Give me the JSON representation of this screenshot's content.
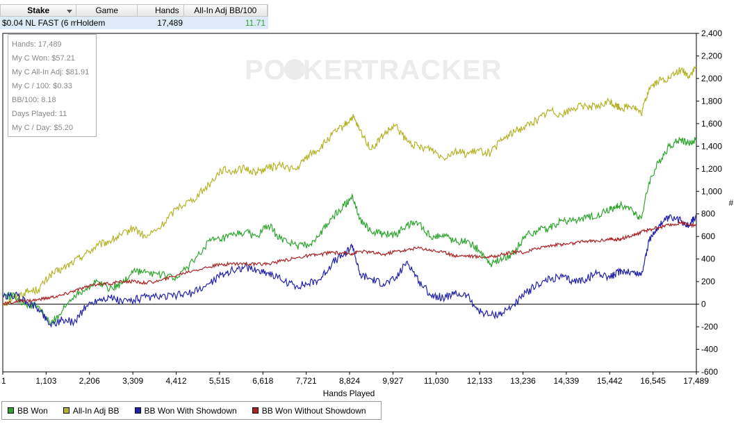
{
  "table": {
    "headers": {
      "stake": "Stake",
      "game": "Game",
      "hands": "Hands",
      "adj": "All-In Adj BB/100"
    },
    "row": {
      "stake": "$0.04 NL FAST (6 ma",
      "game": "Holdem",
      "hands": "17,489",
      "adj": "11.71"
    }
  },
  "stats_box": [
    "Hands: 17,489",
    "My C Won: $57.21",
    "My C All-In Adj: $81.91",
    "My C / 100: $0.33",
    "BB/100: 8.18",
    "Days Played: 11",
    "My C / Day: $5.20"
  ],
  "watermark": {
    "left": "PO",
    "mid": "KER",
    "right": "TRACKER"
  },
  "chart_data": {
    "type": "line",
    "title": "",
    "xlabel": "Hands Played",
    "ylabel": "#",
    "xlim": [
      1,
      17489
    ],
    "ylim": [
      -600,
      2400
    ],
    "x_ticks": [
      "1",
      "1,103",
      "2,206",
      "3,309",
      "4,412",
      "5,515",
      "6,618",
      "7,721",
      "8,824",
      "9,927",
      "11,030",
      "12,133",
      "13,236",
      "14,339",
      "15,442",
      "16,545",
      "17,489"
    ],
    "y_ticks": [
      "-600",
      "-400",
      "-200",
      "0",
      "200",
      "400",
      "600",
      "800",
      "1,000",
      "1,200",
      "1,400",
      "1,600",
      "1,800",
      "2,000",
      "2,200",
      "2,400"
    ],
    "colors": {
      "all_in_adj": "#b4b428",
      "bb_won": "#2ea62e",
      "showdown": "#2222aa",
      "no_showdown": "#aa2222"
    },
    "series": [
      {
        "name": "All-In Adj BB",
        "color": "#b4b428",
        "x": [
          1,
          300,
          600,
          900,
          1200,
          1500,
          1800,
          2100,
          2400,
          2700,
          3000,
          3300,
          3600,
          4000,
          4400,
          4800,
          5200,
          5500,
          5800,
          6100,
          6400,
          6700,
          7000,
          7400,
          7700,
          8000,
          8300,
          8600,
          8824,
          9000,
          9300,
          9600,
          9900,
          10200,
          10500,
          10800,
          11100,
          11400,
          11700,
          12000,
          12300,
          12600,
          12900,
          13200,
          13500,
          13800,
          14100,
          14400,
          14700,
          15000,
          15300,
          15442,
          15600,
          15900,
          16100,
          16300,
          16545,
          16800,
          17100,
          17300,
          17489
        ],
        "y": [
          0,
          60,
          110,
          130,
          260,
          310,
          380,
          450,
          520,
          560,
          610,
          680,
          590,
          690,
          860,
          930,
          1060,
          1190,
          1180,
          1200,
          1170,
          1210,
          1230,
          1190,
          1320,
          1380,
          1500,
          1580,
          1660,
          1540,
          1370,
          1500,
          1580,
          1440,
          1390,
          1380,
          1300,
          1360,
          1330,
          1360,
          1340,
          1460,
          1530,
          1580,
          1640,
          1720,
          1680,
          1740,
          1760,
          1740,
          1800,
          1760,
          1740,
          1760,
          1680,
          1920,
          1980,
          2000,
          2080,
          2020,
          2100
        ]
      },
      {
        "name": "BB Won",
        "color": "#2ea62e",
        "x": [
          1,
          300,
          600,
          900,
          1200,
          1500,
          1800,
          2100,
          2400,
          2700,
          3000,
          3300,
          3600,
          4000,
          4400,
          4800,
          5200,
          5500,
          5800,
          6100,
          6400,
          6700,
          7000,
          7400,
          7700,
          8000,
          8300,
          8600,
          8824,
          9000,
          9300,
          9600,
          9900,
          10200,
          10500,
          10800,
          11100,
          11400,
          11700,
          12000,
          12300,
          12600,
          12900,
          13200,
          13500,
          13800,
          14100,
          14400,
          14700,
          15000,
          15300,
          15442,
          15600,
          15900,
          16100,
          16300,
          16545,
          16800,
          17100,
          17300,
          17489
        ],
        "y": [
          80,
          70,
          -10,
          -20,
          -180,
          -60,
          80,
          140,
          200,
          140,
          180,
          300,
          280,
          260,
          230,
          380,
          560,
          570,
          610,
          640,
          600,
          700,
          580,
          520,
          520,
          620,
          760,
          870,
          960,
          760,
          640,
          620,
          610,
          700,
          720,
          590,
          620,
          560,
          560,
          480,
          360,
          400,
          460,
          620,
          650,
          680,
          740,
          740,
          760,
          790,
          840,
          850,
          880,
          820,
          760,
          1080,
          1260,
          1400,
          1460,
          1420,
          1460
        ]
      },
      {
        "name": "BB Won With Showdown",
        "color": "#2222aa",
        "x": [
          1,
          300,
          600,
          900,
          1200,
          1500,
          1800,
          2100,
          2400,
          2700,
          3000,
          3300,
          3600,
          4000,
          4400,
          4800,
          5200,
          5500,
          5800,
          6100,
          6400,
          6700,
          7000,
          7400,
          7700,
          8000,
          8300,
          8600,
          8824,
          9000,
          9300,
          9600,
          9900,
          10200,
          10500,
          10800,
          11100,
          11400,
          11700,
          12000,
          12300,
          12600,
          12900,
          13200,
          13500,
          13800,
          14100,
          14400,
          14700,
          15000,
          15300,
          15442,
          15600,
          15900,
          16100,
          16300,
          16545,
          16800,
          17100,
          17300,
          17489
        ],
        "y": [
          60,
          80,
          20,
          -40,
          -180,
          -140,
          -160,
          -20,
          40,
          60,
          20,
          40,
          60,
          60,
          80,
          100,
          180,
          260,
          300,
          330,
          300,
          280,
          220,
          160,
          180,
          220,
          360,
          440,
          520,
          260,
          220,
          180,
          220,
          380,
          200,
          80,
          60,
          90,
          80,
          -60,
          -100,
          -80,
          0,
          100,
          180,
          220,
          240,
          200,
          220,
          280,
          240,
          260,
          300,
          280,
          260,
          560,
          700,
          760,
          740,
          700,
          780
        ]
      },
      {
        "name": "BB Won Without Showdown",
        "color": "#aa2222",
        "x": [
          1,
          300,
          600,
          900,
          1200,
          1500,
          1800,
          2100,
          2400,
          2700,
          3000,
          3300,
          3600,
          4000,
          4400,
          4800,
          5200,
          5500,
          5800,
          6100,
          6400,
          6700,
          7000,
          7400,
          7700,
          8000,
          8300,
          8600,
          8824,
          9000,
          9300,
          9600,
          9900,
          10200,
          10500,
          10800,
          11100,
          11400,
          11700,
          12000,
          12300,
          12600,
          12900,
          13200,
          13500,
          13800,
          14100,
          14400,
          14700,
          15000,
          15300,
          15442,
          15600,
          15900,
          16100,
          16300,
          16545,
          16800,
          17100,
          17300,
          17489
        ],
        "y": [
          0,
          20,
          30,
          40,
          60,
          80,
          120,
          150,
          180,
          180,
          200,
          200,
          190,
          210,
          260,
          300,
          330,
          350,
          360,
          360,
          350,
          360,
          380,
          410,
          430,
          440,
          460,
          450,
          450,
          470,
          460,
          440,
          470,
          480,
          500,
          480,
          460,
          430,
          430,
          420,
          420,
          440,
          460,
          460,
          500,
          520,
          530,
          540,
          560,
          560,
          580,
          570,
          580,
          610,
          640,
          660,
          680,
          700,
          720,
          700,
          700
        ]
      }
    ],
    "legend": {
      "position": "bottom-left",
      "entries": [
        {
          "label": "BB Won",
          "color": "#2ea62e"
        },
        {
          "label": "All-In Adj BB",
          "color": "#b4b428"
        },
        {
          "label": "BB Won With Showdown",
          "color": "#2222aa"
        },
        {
          "label": "BB Won Without Showdown",
          "color": "#aa2222"
        }
      ]
    }
  }
}
